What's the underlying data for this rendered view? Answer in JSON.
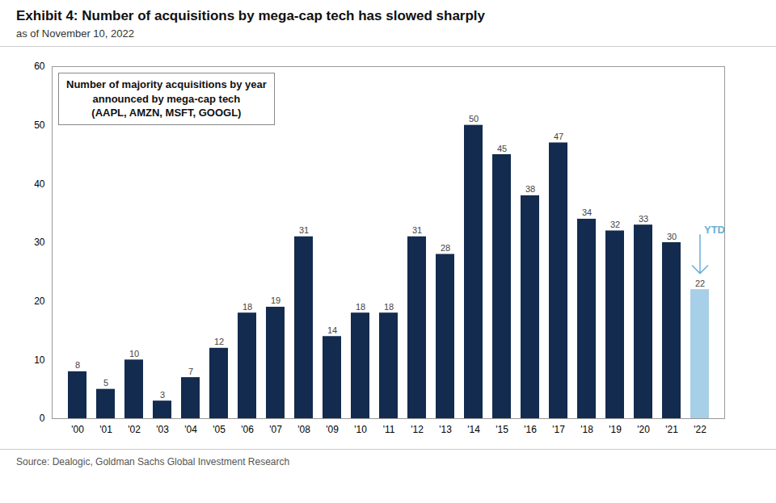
{
  "chart_data": {
    "type": "bar",
    "title": "Exhibit 4: Number of acquisitions by mega-cap tech has slowed sharply",
    "subtitle": "as of November 10, 2022",
    "source": "Source: Dealogic, Goldman Sachs Global Investment Research",
    "annotations": [
      {
        "text": "Number of majority acquisitions by year\nannounced by mega-cap tech\n(AAPL, AMZN, MSFT, GOOGL)"
      },
      {
        "text": "YTD",
        "category": "'22",
        "color": "#6ab0d8"
      }
    ],
    "categories": [
      "'00",
      "'01",
      "'02",
      "'03",
      "'04",
      "'05",
      "'06",
      "'07",
      "'08",
      "'09",
      "'10",
      "'11",
      "'12",
      "'13",
      "'14",
      "'15",
      "'16",
      "'17",
      "'18",
      "'19",
      "'20",
      "'21",
      "'22"
    ],
    "values": [
      8,
      5,
      10,
      3,
      7,
      12,
      18,
      19,
      31,
      14,
      18,
      18,
      31,
      28,
      50,
      45,
      38,
      47,
      34,
      32,
      33,
      30,
      22
    ],
    "colors": [
      "#132b4e",
      "#132b4e",
      "#132b4e",
      "#132b4e",
      "#132b4e",
      "#132b4e",
      "#132b4e",
      "#132b4e",
      "#132b4e",
      "#132b4e",
      "#132b4e",
      "#132b4e",
      "#132b4e",
      "#132b4e",
      "#132b4e",
      "#132b4e",
      "#132b4e",
      "#132b4e",
      "#132b4e",
      "#132b4e",
      "#132b4e",
      "#132b4e",
      "#a8cfe8"
    ],
    "ylim": [
      0,
      60
    ],
    "yticks": [
      0,
      10,
      20,
      30,
      40,
      50,
      60
    ],
    "data_labels": true,
    "grid": false
  }
}
